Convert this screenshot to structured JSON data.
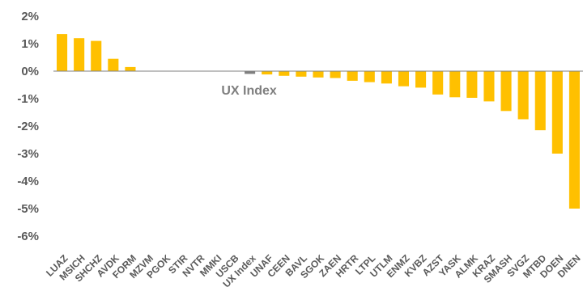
{
  "chart_data": {
    "type": "bar",
    "title": "",
    "xlabel": "",
    "ylabel": "",
    "ylim": [
      -6,
      2
    ],
    "y_ticks": [
      "2%",
      "1%",
      "0%",
      "-1%",
      "-2%",
      "-3%",
      "-4%",
      "-5%",
      "-6%"
    ],
    "y_tick_values": [
      2,
      1,
      0,
      -1,
      -2,
      -3,
      -4,
      -5,
      -6
    ],
    "grid": false,
    "legend": "none",
    "categories": [
      "LUAZ",
      "MSICH",
      "SHCHZ",
      "AVDK",
      "FORM",
      "MZVM",
      "PGOK",
      "STIR",
      "NVTR",
      "MMKI",
      "USCB",
      "UX Index",
      "UNAF",
      "CEEN",
      "BAVL",
      "SGOK",
      "ZAEN",
      "HRTR",
      "LTPL",
      "UTLM",
      "ENMZ",
      "KVBZ",
      "AZST",
      "YASK",
      "ALMK",
      "KRAZ",
      "SMASH",
      "SVGZ",
      "MTBD",
      "DOEN",
      "DNEN"
    ],
    "values": [
      1.35,
      1.2,
      1.1,
      0.45,
      0.15,
      0,
      0,
      0,
      0,
      0,
      0,
      -0.1,
      -0.12,
      -0.17,
      -0.2,
      -0.23,
      -0.25,
      -0.35,
      -0.4,
      -0.45,
      -0.55,
      -0.6,
      -0.85,
      -0.95,
      -0.97,
      -1.1,
      -1.45,
      -1.75,
      -2.15,
      -3.0,
      -5.0
    ],
    "highlight_category": "UX Index",
    "annotation": "UX Index",
    "colors": {
      "bar": "#FFC000",
      "highlight": "#808080",
      "axis": "#595959",
      "text": "#595959"
    }
  }
}
